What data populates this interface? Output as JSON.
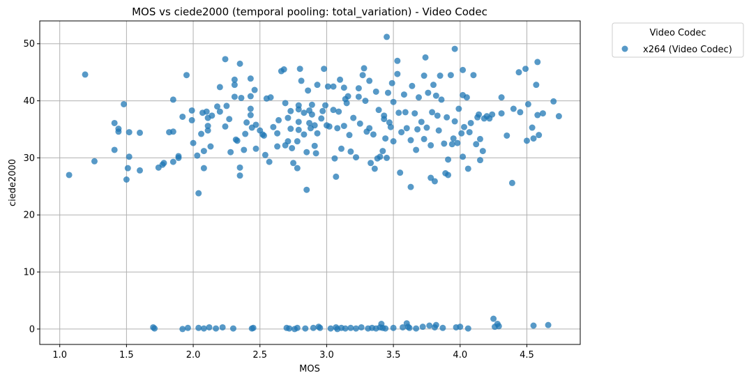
{
  "chart_data": {
    "type": "scatter",
    "title": "MOS vs ciede2000 (temporal pooling: total_variation) - Video Codec",
    "xlabel": "MOS",
    "ylabel": "ciede2000",
    "xlim": [
      0.85,
      4.9
    ],
    "ylim": [
      -2.7,
      54
    ],
    "xticks": [
      "1.0",
      "1.5",
      "2.0",
      "2.5",
      "3.0",
      "3.5",
      "4.0",
      "4.5"
    ],
    "yticks": [
      "0",
      "10",
      "20",
      "30",
      "40",
      "50"
    ],
    "grid": true,
    "legend": {
      "title": "Video Codec",
      "placement": "outside-top-right"
    },
    "series": [
      {
        "name": "x264 (Video Codec)",
        "color": "#1f77b4",
        "points": [
          [
            1.07,
            27.0
          ],
          [
            1.19,
            44.6
          ],
          [
            1.26,
            29.4
          ],
          [
            1.41,
            36.1
          ],
          [
            1.41,
            31.4
          ],
          [
            1.44,
            35.1
          ],
          [
            1.44,
            34.6
          ],
          [
            1.48,
            39.4
          ],
          [
            1.5,
            26.2
          ],
          [
            1.51,
            28.2
          ],
          [
            1.52,
            34.5
          ],
          [
            1.52,
            30.2
          ],
          [
            1.6,
            34.4
          ],
          [
            1.6,
            27.8
          ],
          [
            1.7,
            0.3
          ],
          [
            1.71,
            0.1
          ],
          [
            1.74,
            28.3
          ],
          [
            1.77,
            28.8
          ],
          [
            1.78,
            29.1
          ],
          [
            1.82,
            34.5
          ],
          [
            1.85,
            40.2
          ],
          [
            1.85,
            34.6
          ],
          [
            1.85,
            29.3
          ],
          [
            1.89,
            30.0
          ],
          [
            1.89,
            30.3
          ],
          [
            1.92,
            0.0
          ],
          [
            1.92,
            37.2
          ],
          [
            1.95,
            44.5
          ],
          [
            1.96,
            0.2
          ],
          [
            1.99,
            38.3
          ],
          [
            1.99,
            36.6
          ],
          [
            2.0,
            32.6
          ],
          [
            2.03,
            30.4
          ],
          [
            2.04,
            23.8
          ],
          [
            2.04,
            0.2
          ],
          [
            2.06,
            34.2
          ],
          [
            2.07,
            37.9
          ],
          [
            2.08,
            31.2
          ],
          [
            2.08,
            28.2
          ],
          [
            2.08,
            0.1
          ],
          [
            2.1,
            38.1
          ],
          [
            2.11,
            37.0
          ],
          [
            2.11,
            35.6
          ],
          [
            2.11,
            34.8
          ],
          [
            2.12,
            0.3
          ],
          [
            2.13,
            32.0
          ],
          [
            2.14,
            37.4
          ],
          [
            2.17,
            0.1
          ],
          [
            2.18,
            39.0
          ],
          [
            2.2,
            42.4
          ],
          [
            2.2,
            38.1
          ],
          [
            2.22,
            0.3
          ],
          [
            2.24,
            47.3
          ],
          [
            2.24,
            35.5
          ],
          [
            2.25,
            39.1
          ],
          [
            2.27,
            36.8
          ],
          [
            2.28,
            31.0
          ],
          [
            2.3,
            0.1
          ],
          [
            2.31,
            43.7
          ],
          [
            2.31,
            42.8
          ],
          [
            2.31,
            40.7
          ],
          [
            2.32,
            33.2
          ],
          [
            2.33,
            33.0
          ],
          [
            2.35,
            46.5
          ],
          [
            2.35,
            28.3
          ],
          [
            2.35,
            26.9
          ],
          [
            2.36,
            40.5
          ],
          [
            2.38,
            31.4
          ],
          [
            2.39,
            34.2
          ],
          [
            2.4,
            36.2
          ],
          [
            2.43,
            43.9
          ],
          [
            2.43,
            40.8
          ],
          [
            2.43,
            38.6
          ],
          [
            2.43,
            37.5
          ],
          [
            2.44,
            35.3
          ],
          [
            2.44,
            0.1
          ],
          [
            2.45,
            0.2
          ],
          [
            2.46,
            41.9
          ],
          [
            2.47,
            35.8
          ],
          [
            2.47,
            31.6
          ],
          [
            2.5,
            34.8
          ],
          [
            2.52,
            34.1
          ],
          [
            2.53,
            33.9
          ],
          [
            2.54,
            30.5
          ],
          [
            2.55,
            40.4
          ],
          [
            2.57,
            29.3
          ],
          [
            2.58,
            40.6
          ],
          [
            2.6,
            35.4
          ],
          [
            2.63,
            34.3
          ],
          [
            2.63,
            32.0
          ],
          [
            2.64,
            36.6
          ],
          [
            2.66,
            45.2
          ],
          [
            2.68,
            45.5
          ],
          [
            2.69,
            39.6
          ],
          [
            2.69,
            32.2
          ],
          [
            2.7,
            0.2
          ],
          [
            2.71,
            37.0
          ],
          [
            2.71,
            32.9
          ],
          [
            2.72,
            0.1
          ],
          [
            2.73,
            38.2
          ],
          [
            2.73,
            35.1
          ],
          [
            2.74,
            31.7
          ],
          [
            2.75,
            29.1
          ],
          [
            2.76,
            0.0
          ],
          [
            2.78,
            32.9
          ],
          [
            2.78,
            28.2
          ],
          [
            2.78,
            0.2
          ],
          [
            2.79,
            39.2
          ],
          [
            2.79,
            38.5
          ],
          [
            2.79,
            36.3
          ],
          [
            2.79,
            34.9
          ],
          [
            2.8,
            45.6
          ],
          [
            2.81,
            43.5
          ],
          [
            2.83,
            37.9
          ],
          [
            2.83,
            34.1
          ],
          [
            2.84,
            0.1
          ],
          [
            2.85,
            24.4
          ],
          [
            2.85,
            31.0
          ],
          [
            2.86,
            41.8
          ],
          [
            2.87,
            38.3
          ],
          [
            2.87,
            36.1
          ],
          [
            2.88,
            35.2
          ],
          [
            2.89,
            39.3
          ],
          [
            2.89,
            37.6
          ],
          [
            2.9,
            0.2
          ],
          [
            2.91,
            35.7
          ],
          [
            2.91,
            32.1
          ],
          [
            2.92,
            30.8
          ],
          [
            2.93,
            42.8
          ],
          [
            2.93,
            34.3
          ],
          [
            2.94,
            0.4
          ],
          [
            2.95,
            0.2
          ],
          [
            2.96,
            36.9
          ],
          [
            2.97,
            38.2
          ],
          [
            2.98,
            45.6
          ],
          [
            2.99,
            39.2
          ],
          [
            3.0,
            35.7
          ],
          [
            3.01,
            42.5
          ],
          [
            3.02,
            35.5
          ],
          [
            3.03,
            0.1
          ],
          [
            3.05,
            42.5
          ],
          [
            3.05,
            38.4
          ],
          [
            3.06,
            29.9
          ],
          [
            3.07,
            26.7
          ],
          [
            3.07,
            0.3
          ],
          [
            3.08,
            35.2
          ],
          [
            3.08,
            0.0
          ],
          [
            3.09,
            38.1
          ],
          [
            3.1,
            43.7
          ],
          [
            3.11,
            31.6
          ],
          [
            3.11,
            0.2
          ],
          [
            3.13,
            42.3
          ],
          [
            3.13,
            35.6
          ],
          [
            3.14,
            40.3
          ],
          [
            3.14,
            0.1
          ],
          [
            3.15,
            39.6
          ],
          [
            3.16,
            40.8
          ],
          [
            3.17,
            34.0
          ],
          [
            3.18,
            31.1
          ],
          [
            3.18,
            0.2
          ],
          [
            3.2,
            37.0
          ],
          [
            3.22,
            30.1
          ],
          [
            3.22,
            0.1
          ],
          [
            3.24,
            42.2
          ],
          [
            3.24,
            40.7
          ],
          [
            3.25,
            36.0
          ],
          [
            3.26,
            0.3
          ],
          [
            3.27,
            44.5
          ],
          [
            3.28,
            45.7
          ],
          [
            3.29,
            40.0
          ],
          [
            3.3,
            34.6
          ],
          [
            3.31,
            0.1
          ],
          [
            3.32,
            43.5
          ],
          [
            3.32,
            35.2
          ],
          [
            3.33,
            29.1
          ],
          [
            3.34,
            0.2
          ],
          [
            3.35,
            34.1
          ],
          [
            3.36,
            28.1
          ],
          [
            3.37,
            41.6
          ],
          [
            3.37,
            0.1
          ],
          [
            3.38,
            29.9
          ],
          [
            3.39,
            38.4
          ],
          [
            3.4,
            30.2
          ],
          [
            3.4,
            0.3
          ],
          [
            3.41,
            0.9
          ],
          [
            3.42,
            31.2
          ],
          [
            3.42,
            0.2
          ],
          [
            3.43,
            37.4
          ],
          [
            3.43,
            36.8
          ],
          [
            3.44,
            33.4
          ],
          [
            3.44,
            0.1
          ],
          [
            3.45,
            51.2
          ],
          [
            3.45,
            30.0
          ],
          [
            3.46,
            41.4
          ],
          [
            3.47,
            36.2
          ],
          [
            3.48,
            35.4
          ],
          [
            3.49,
            43.1
          ],
          [
            3.5,
            39.8
          ],
          [
            3.5,
            32.9
          ],
          [
            3.5,
            0.2
          ],
          [
            3.53,
            47.0
          ],
          [
            3.53,
            44.7
          ],
          [
            3.54,
            37.9
          ],
          [
            3.55,
            27.4
          ],
          [
            3.56,
            34.5
          ],
          [
            3.57,
            0.3
          ],
          [
            3.58,
            41.1
          ],
          [
            3.59,
            38.0
          ],
          [
            3.6,
            35.2
          ],
          [
            3.6,
            1.0
          ],
          [
            3.61,
            0.4
          ],
          [
            3.62,
            0.2
          ],
          [
            3.63,
            24.9
          ],
          [
            3.63,
            33.1
          ],
          [
            3.64,
            42.6
          ],
          [
            3.66,
            37.8
          ],
          [
            3.67,
            31.4
          ],
          [
            3.67,
            0.1
          ],
          [
            3.68,
            35.0
          ],
          [
            3.69,
            40.6
          ],
          [
            3.71,
            36.3
          ],
          [
            3.72,
            0.4
          ],
          [
            3.73,
            44.4
          ],
          [
            3.73,
            33.3
          ],
          [
            3.74,
            47.6
          ],
          [
            3.75,
            35.3
          ],
          [
            3.76,
            41.4
          ],
          [
            3.77,
            0.6
          ],
          [
            3.78,
            26.5
          ],
          [
            3.78,
            32.2
          ],
          [
            3.79,
            38.0
          ],
          [
            3.8,
            42.8
          ],
          [
            3.81,
            25.9
          ],
          [
            3.81,
            0.3
          ],
          [
            3.82,
            40.9
          ],
          [
            3.82,
            0.7
          ],
          [
            3.83,
            37.4
          ],
          [
            3.84,
            34.8
          ],
          [
            3.85,
            44.4
          ],
          [
            3.86,
            40.2
          ],
          [
            3.87,
            0.2
          ],
          [
            3.88,
            32.5
          ],
          [
            3.89,
            27.3
          ],
          [
            3.9,
            37.1
          ],
          [
            3.91,
            29.7
          ],
          [
            3.91,
            27.0
          ],
          [
            3.93,
            44.5
          ],
          [
            3.94,
            32.4
          ],
          [
            3.95,
            33.4
          ],
          [
            3.96,
            49.1
          ],
          [
            3.96,
            36.4
          ],
          [
            3.97,
            0.3
          ],
          [
            3.98,
            32.6
          ],
          [
            3.99,
            38.6
          ],
          [
            4.0,
            0.4
          ],
          [
            4.01,
            34.3
          ],
          [
            4.02,
            45.4
          ],
          [
            4.02,
            41.0
          ],
          [
            4.02,
            30.2
          ],
          [
            4.03,
            35.4
          ],
          [
            4.05,
            40.6
          ],
          [
            4.06,
            0.1
          ],
          [
            4.06,
            28.1
          ],
          [
            4.07,
            34.5
          ],
          [
            4.08,
            36.1
          ],
          [
            4.1,
            44.5
          ],
          [
            4.12,
            32.4
          ],
          [
            4.13,
            37.1
          ],
          [
            4.14,
            37.6
          ],
          [
            4.15,
            29.6
          ],
          [
            4.15,
            33.3
          ],
          [
            4.17,
            31.2
          ],
          [
            4.18,
            36.9
          ],
          [
            4.2,
            37.3
          ],
          [
            4.22,
            36.9
          ],
          [
            4.24,
            37.6
          ],
          [
            4.25,
            1.8
          ],
          [
            4.26,
            0.4
          ],
          [
            4.28,
            0.9
          ],
          [
            4.29,
            0.5
          ],
          [
            4.31,
            40.6
          ],
          [
            4.31,
            37.8
          ],
          [
            4.35,
            33.9
          ],
          [
            4.39,
            25.6
          ],
          [
            4.4,
            38.6
          ],
          [
            4.44,
            45.0
          ],
          [
            4.45,
            38.0
          ],
          [
            4.49,
            45.6
          ],
          [
            4.5,
            33.0
          ],
          [
            4.51,
            39.4
          ],
          [
            4.54,
            35.3
          ],
          [
            4.55,
            0.6
          ],
          [
            4.55,
            33.4
          ],
          [
            4.57,
            42.8
          ],
          [
            4.58,
            46.8
          ],
          [
            4.58,
            37.5
          ],
          [
            4.59,
            34.0
          ],
          [
            4.62,
            37.8
          ],
          [
            4.66,
            0.7
          ],
          [
            4.7,
            39.9
          ],
          [
            4.74,
            37.3
          ]
        ]
      }
    ]
  }
}
